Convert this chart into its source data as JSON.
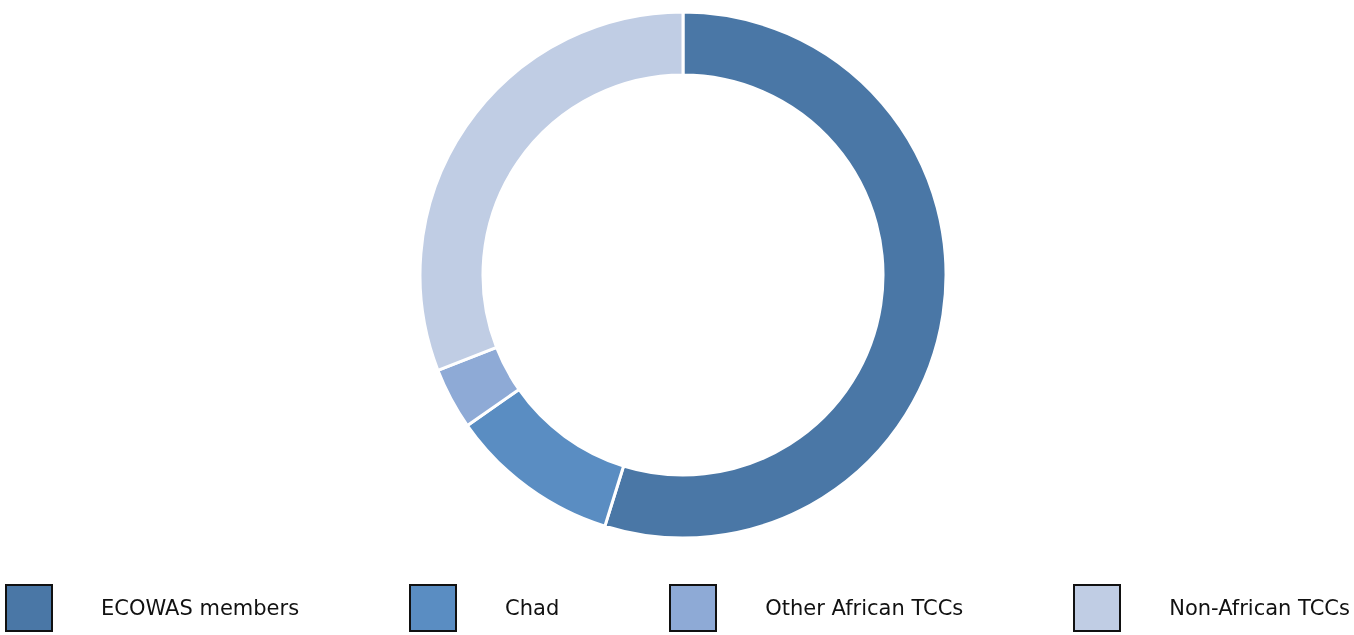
{
  "chart_data": {
    "type": "donut",
    "categories": [
      "ECOWAS members",
      "Chad",
      "Other African TCCs",
      "Non-African TCCs"
    ],
    "values": [
      54.8,
      10.5,
      3.8,
      30.9
    ],
    "colors": [
      "#4a77a6",
      "#5a8dc2",
      "#8eaad6",
      "#c0cde4"
    ],
    "legend": "bottom"
  }
}
